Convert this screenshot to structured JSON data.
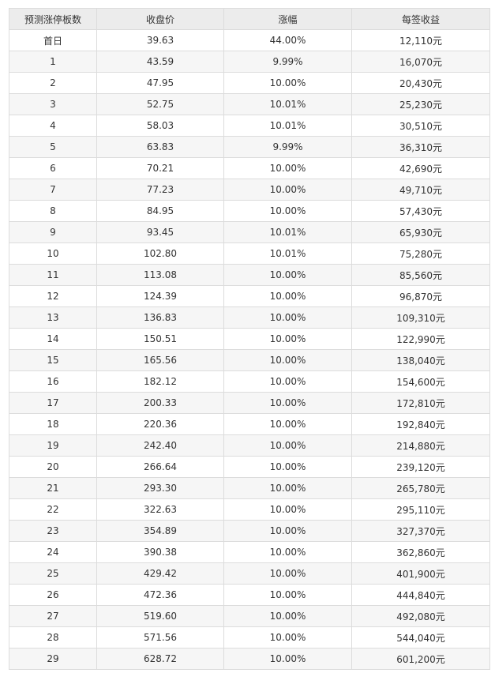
{
  "table": {
    "header": [
      "预测涨停板数",
      "收盘价",
      "涨幅",
      "每签收益"
    ],
    "rows": [
      [
        "首日",
        "39.63",
        "44.00%",
        "12,110元"
      ],
      [
        "1",
        "43.59",
        "9.99%",
        "16,070元"
      ],
      [
        "2",
        "47.95",
        "10.00%",
        "20,430元"
      ],
      [
        "3",
        "52.75",
        "10.01%",
        "25,230元"
      ],
      [
        "4",
        "58.03",
        "10.01%",
        "30,510元"
      ],
      [
        "5",
        "63.83",
        "9.99%",
        "36,310元"
      ],
      [
        "6",
        "70.21",
        "10.00%",
        "42,690元"
      ],
      [
        "7",
        "77.23",
        "10.00%",
        "49,710元"
      ],
      [
        "8",
        "84.95",
        "10.00%",
        "57,430元"
      ],
      [
        "9",
        "93.45",
        "10.01%",
        "65,930元"
      ],
      [
        "10",
        "102.80",
        "10.01%",
        "75,280元"
      ],
      [
        "11",
        "113.08",
        "10.00%",
        "85,560元"
      ],
      [
        "12",
        "124.39",
        "10.00%",
        "96,870元"
      ],
      [
        "13",
        "136.83",
        "10.00%",
        "109,310元"
      ],
      [
        "14",
        "150.51",
        "10.00%",
        "122,990元"
      ],
      [
        "15",
        "165.56",
        "10.00%",
        "138,040元"
      ],
      [
        "16",
        "182.12",
        "10.00%",
        "154,600元"
      ],
      [
        "17",
        "200.33",
        "10.00%",
        "172,810元"
      ],
      [
        "18",
        "220.36",
        "10.00%",
        "192,840元"
      ],
      [
        "19",
        "242.40",
        "10.00%",
        "214,880元"
      ],
      [
        "20",
        "266.64",
        "10.00%",
        "239,120元"
      ],
      [
        "21",
        "293.30",
        "10.00%",
        "265,780元"
      ],
      [
        "22",
        "322.63",
        "10.00%",
        "295,110元"
      ],
      [
        "23",
        "354.89",
        "10.00%",
        "327,370元"
      ],
      [
        "24",
        "390.38",
        "10.00%",
        "362,860元"
      ],
      [
        "25",
        "429.42",
        "10.00%",
        "401,900元"
      ],
      [
        "26",
        "472.36",
        "10.00%",
        "444,840元"
      ],
      [
        "27",
        "519.60",
        "10.00%",
        "492,080元"
      ],
      [
        "28",
        "571.56",
        "10.00%",
        "544,040元"
      ],
      [
        "29",
        "628.72",
        "10.00%",
        "601,200元"
      ]
    ]
  }
}
